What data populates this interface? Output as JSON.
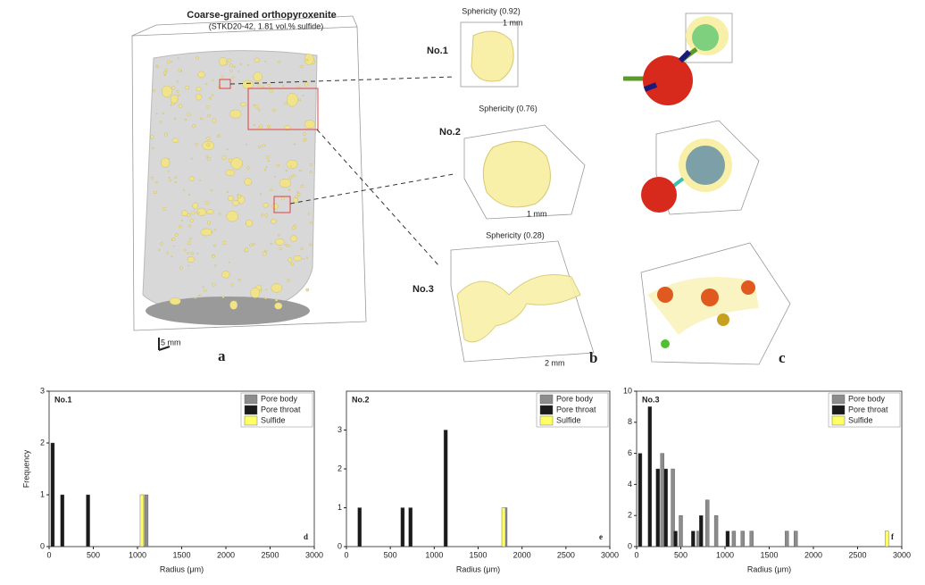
{
  "panels": {
    "a": {
      "title": "Coarse-grained orthopyroxenite",
      "subtitle": "(STKD20-42, 1.81 vol.% sulfide)",
      "scale": "5 mm",
      "letter": "a"
    },
    "b": {
      "letter": "b",
      "items": [
        {
          "name": "No.1",
          "sphericity": "Sphericity (0.92)",
          "scale": "1 mm"
        },
        {
          "name": "No.2",
          "sphericity": "Sphericity (0.76)",
          "scale": "1 mm"
        },
        {
          "name": "No.3",
          "sphericity": "Sphericity (0.28)",
          "scale": "2 mm"
        }
      ]
    },
    "c": {
      "letter": "c"
    }
  },
  "chart_data": [
    {
      "type": "bar",
      "title": "No.1",
      "letter": "d",
      "ylabel": "Frequency",
      "xlabel": "Radius (μm)",
      "xlim": [
        0,
        3000
      ],
      "xticks": [
        0,
        500,
        1000,
        1500,
        2000,
        2500,
        3000
      ],
      "ylim": [
        0,
        3
      ],
      "yticks": [
        0,
        1,
        2,
        3
      ],
      "series": [
        {
          "name": "Pore body",
          "color": "#8c8c8c",
          "x": [
            1100
          ],
          "values": [
            1
          ]
        },
        {
          "name": "Pore throat",
          "color": "#1a1a1a",
          "x": [
            40,
            150,
            440
          ],
          "values": [
            2,
            1,
            1
          ]
        },
        {
          "name": "Sulfide",
          "color": "#ffff66",
          "x": [
            1050
          ],
          "values": [
            1
          ]
        }
      ]
    },
    {
      "type": "bar",
      "title": "No.2",
      "letter": "e",
      "xlabel": "Radius (μm)",
      "xlim": [
        0,
        3000
      ],
      "xticks": [
        0,
        500,
        1000,
        1500,
        2000,
        2500,
        3000
      ],
      "ylim": [
        0,
        4
      ],
      "yticks": [
        0,
        1,
        2,
        3
      ],
      "series": [
        {
          "name": "Pore body",
          "color": "#8c8c8c",
          "x": [
            1810
          ],
          "values": [
            1
          ]
        },
        {
          "name": "Pore throat",
          "color": "#1a1a1a",
          "x": [
            150,
            640,
            730,
            1130
          ],
          "values": [
            1,
            1,
            1,
            3
          ]
        },
        {
          "name": "Sulfide",
          "color": "#ffff66",
          "x": [
            1790
          ],
          "values": [
            1
          ]
        }
      ]
    },
    {
      "type": "bar",
      "title": "No.3",
      "letter": "f",
      "xlabel": "Radius (μm)",
      "xlim": [
        0,
        3000
      ],
      "xticks": [
        0,
        500,
        1000,
        1500,
        2000,
        2500,
        3000
      ],
      "ylim": [
        0,
        10
      ],
      "yticks": [
        0,
        2,
        4,
        6,
        8,
        10
      ],
      "series": [
        {
          "name": "Pore body",
          "color": "#8c8c8c",
          "x": [
            290,
            410,
            500,
            700,
            800,
            900,
            1100,
            1200,
            1300,
            1700,
            1800
          ],
          "values": [
            6,
            5,
            2,
            1,
            3,
            2,
            1,
            1,
            1,
            1,
            1
          ]
        },
        {
          "name": "Pore throat",
          "color": "#1a1a1a",
          "x": [
            40,
            150,
            240,
            330,
            440,
            640,
            730,
            1030
          ],
          "values": [
            6,
            9,
            5,
            5,
            1,
            1,
            2,
            1
          ]
        },
        {
          "name": "Sulfide",
          "color": "#ffff66",
          "x": [
            2830
          ],
          "values": [
            1
          ]
        }
      ]
    }
  ]
}
